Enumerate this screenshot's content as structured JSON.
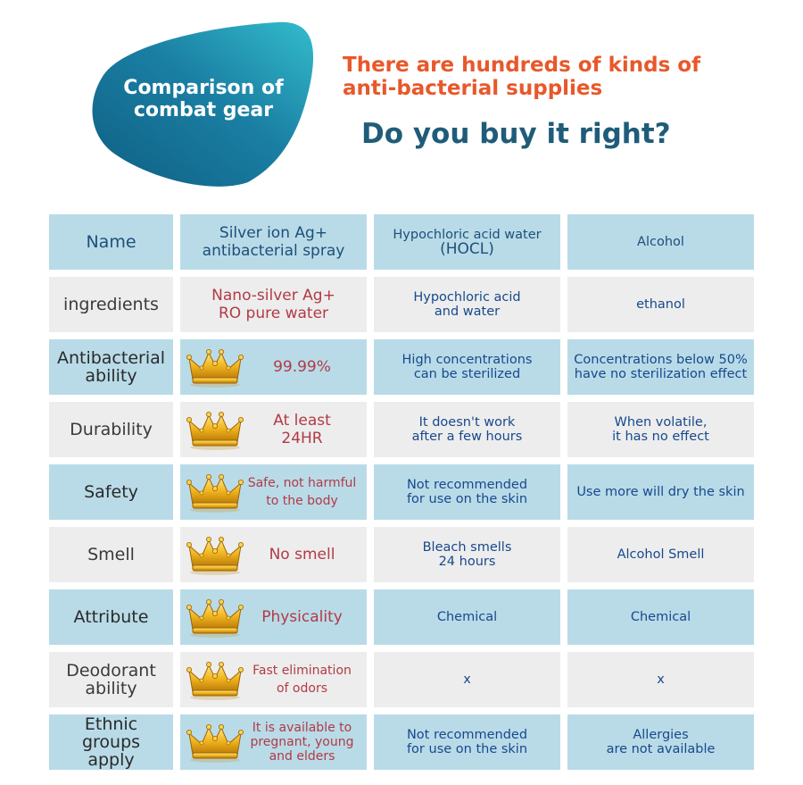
{
  "badge": {
    "line1": "Comparison of",
    "line2": "combat gear"
  },
  "headline": {
    "line1": "There are hundreds of kinds of",
    "line2": "anti-bacterial supplies"
  },
  "question": "Do you buy it right?",
  "colors": {
    "teal_dark": "#1a6d8f",
    "teal_light": "#2fb3c8",
    "orange": "#e8582a",
    "navy": "#1f5c79",
    "cell_blue": "#b9dbe8",
    "cell_gray": "#ededed",
    "red_text": "#b23a45",
    "blue_text": "#17498c"
  },
  "header": {
    "name": "Name",
    "silver_line1": "Silver ion Ag+",
    "silver_line2": "antibacterial spray",
    "hocl_line1": "Hypochloric acid water",
    "hocl_line2": "(HOCL)",
    "alcohol": "Alcohol"
  },
  "rows": [
    {
      "name": [
        "ingredients"
      ],
      "silver": [
        "Nano-silver Ag+",
        "RO pure water"
      ],
      "hocl": [
        "Hypochloric acid",
        "and water"
      ],
      "alcohol": [
        "ethanol"
      ],
      "crown": false
    },
    {
      "name": [
        "Antibacterial",
        "ability"
      ],
      "silver": [
        "99.99%"
      ],
      "hocl": [
        "High concentrations",
        "can be sterilized"
      ],
      "alcohol": [
        "Concentrations below 50%",
        "have no sterilization effect"
      ],
      "crown": true,
      "crown_icon": "crown-icon"
    },
    {
      "name": [
        "Durability"
      ],
      "silver": [
        "At least",
        "24HR"
      ],
      "hocl": [
        "It doesn't work",
        "after a few hours"
      ],
      "alcohol": [
        "When volatile,",
        "it has no effect"
      ],
      "crown": true,
      "crown_icon": "crown-icon"
    },
    {
      "name": [
        "Safety"
      ],
      "silver": [
        "Safe, not harmful",
        "to the body"
      ],
      "hocl": [
        "Not recommended",
        "for use on the skin"
      ],
      "alcohol": [
        "Use more will dry the skin"
      ],
      "crown": true,
      "crown_icon": "crown-icon"
    },
    {
      "name": [
        "Smell"
      ],
      "silver": [
        "No smell"
      ],
      "hocl": [
        "Bleach smells",
        "24 hours"
      ],
      "alcohol": [
        "Alcohol Smell"
      ],
      "crown": true,
      "crown_icon": "crown-icon"
    },
    {
      "name": [
        "Attribute"
      ],
      "silver": [
        "Physicality"
      ],
      "hocl": [
        "Chemical"
      ],
      "alcohol": [
        "Chemical"
      ],
      "crown": true,
      "crown_icon": "crown-icon"
    },
    {
      "name": [
        "Deodorant",
        "ability"
      ],
      "silver": [
        "Fast elimination",
        "of odors"
      ],
      "hocl": [
        "x"
      ],
      "alcohol": [
        "x"
      ],
      "crown": true,
      "crown_icon": "crown-icon"
    },
    {
      "name": [
        "Ethnic groups",
        "apply"
      ],
      "silver": [
        "It is available to",
        "pregnant, young",
        "and elders"
      ],
      "hocl": [
        "Not recommended",
        "for use on the skin"
      ],
      "alcohol": [
        "Allergies",
        "are not available"
      ],
      "crown": true,
      "crown_icon": "crown-icon"
    }
  ]
}
